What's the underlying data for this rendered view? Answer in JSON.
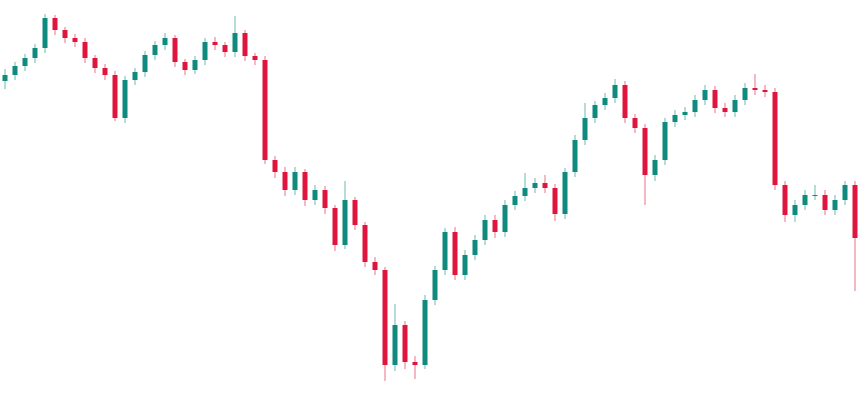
{
  "chart_data": {
    "type": "candlestick",
    "up_color": "#0f8a7e",
    "down_color": "#e0153d",
    "ylim": [
      0,
      419
    ],
    "open": [
      338,
      344,
      353,
      361,
      371,
      401,
      389,
      381,
      377,
      361,
      351,
      344,
      301,
      339,
      347,
      364,
      374,
      381,
      357,
      349,
      359,
      377,
      374,
      367,
      386,
      363,
      359,
      259,
      247,
      229,
      247,
      219,
      229,
      211,
      174,
      219,
      194,
      157,
      149,
      54,
      94,
      57,
      54,
      119,
      149,
      187,
      144,
      164,
      179,
      199,
      187,
      214,
      223,
      231,
      236,
      231,
      205,
      247,
      279,
      301,
      314,
      321,
      334,
      301,
      291,
      244,
      259,
      297,
      304,
      307,
      319,
      329,
      311,
      307,
      319,
      331,
      329,
      327,
      234,
      204,
      214,
      224,
      224,
      209,
      219,
      234
    ],
    "high": [
      350,
      357,
      365,
      375,
      405,
      404,
      392,
      385,
      381,
      364,
      355,
      348,
      343,
      351,
      368,
      378,
      386,
      384,
      360,
      363,
      381,
      382,
      377,
      403,
      389,
      366,
      363,
      263,
      252,
      252,
      250,
      234,
      233,
      214,
      238,
      222,
      197,
      162,
      152,
      115,
      98,
      63,
      124,
      153,
      191,
      192,
      169,
      184,
      204,
      204,
      219,
      228,
      246,
      241,
      244,
      235,
      251,
      284,
      316,
      318,
      326,
      340,
      338,
      305,
      295,
      264,
      301,
      309,
      312,
      324,
      334,
      333,
      316,
      324,
      336,
      345,
      334,
      331,
      238,
      219,
      229,
      234,
      229,
      224,
      238,
      238
    ],
    "low": [
      330,
      339,
      348,
      356,
      366,
      384,
      376,
      372,
      356,
      346,
      339,
      298,
      296,
      334,
      342,
      359,
      369,
      352,
      344,
      345,
      354,
      369,
      362,
      362,
      358,
      354,
      255,
      241,
      223,
      224,
      213,
      214,
      205,
      168,
      170,
      189,
      152,
      144,
      38,
      48,
      50,
      40,
      50,
      114,
      144,
      139,
      139,
      159,
      174,
      181,
      182,
      209,
      218,
      226,
      226,
      198,
      200,
      242,
      274,
      296,
      309,
      316,
      296,
      286,
      214,
      238,
      254,
      292,
      299,
      302,
      314,
      306,
      302,
      302,
      314,
      324,
      322,
      229,
      197,
      197,
      209,
      219,
      204,
      204,
      214,
      128
    ],
    "close": [
      344,
      353,
      361,
      371,
      401,
      389,
      381,
      377,
      361,
      351,
      344,
      301,
      339,
      347,
      364,
      374,
      381,
      357,
      349,
      359,
      377,
      374,
      367,
      386,
      363,
      359,
      259,
      247,
      229,
      247,
      219,
      229,
      211,
      174,
      219,
      194,
      157,
      149,
      54,
      94,
      57,
      54,
      119,
      149,
      187,
      144,
      164,
      179,
      199,
      187,
      214,
      223,
      231,
      236,
      231,
      205,
      247,
      279,
      301,
      314,
      321,
      334,
      301,
      291,
      244,
      259,
      297,
      304,
      307,
      319,
      329,
      311,
      307,
      319,
      331,
      329,
      327,
      234,
      204,
      214,
      224,
      224,
      209,
      219,
      234,
      181
    ]
  }
}
